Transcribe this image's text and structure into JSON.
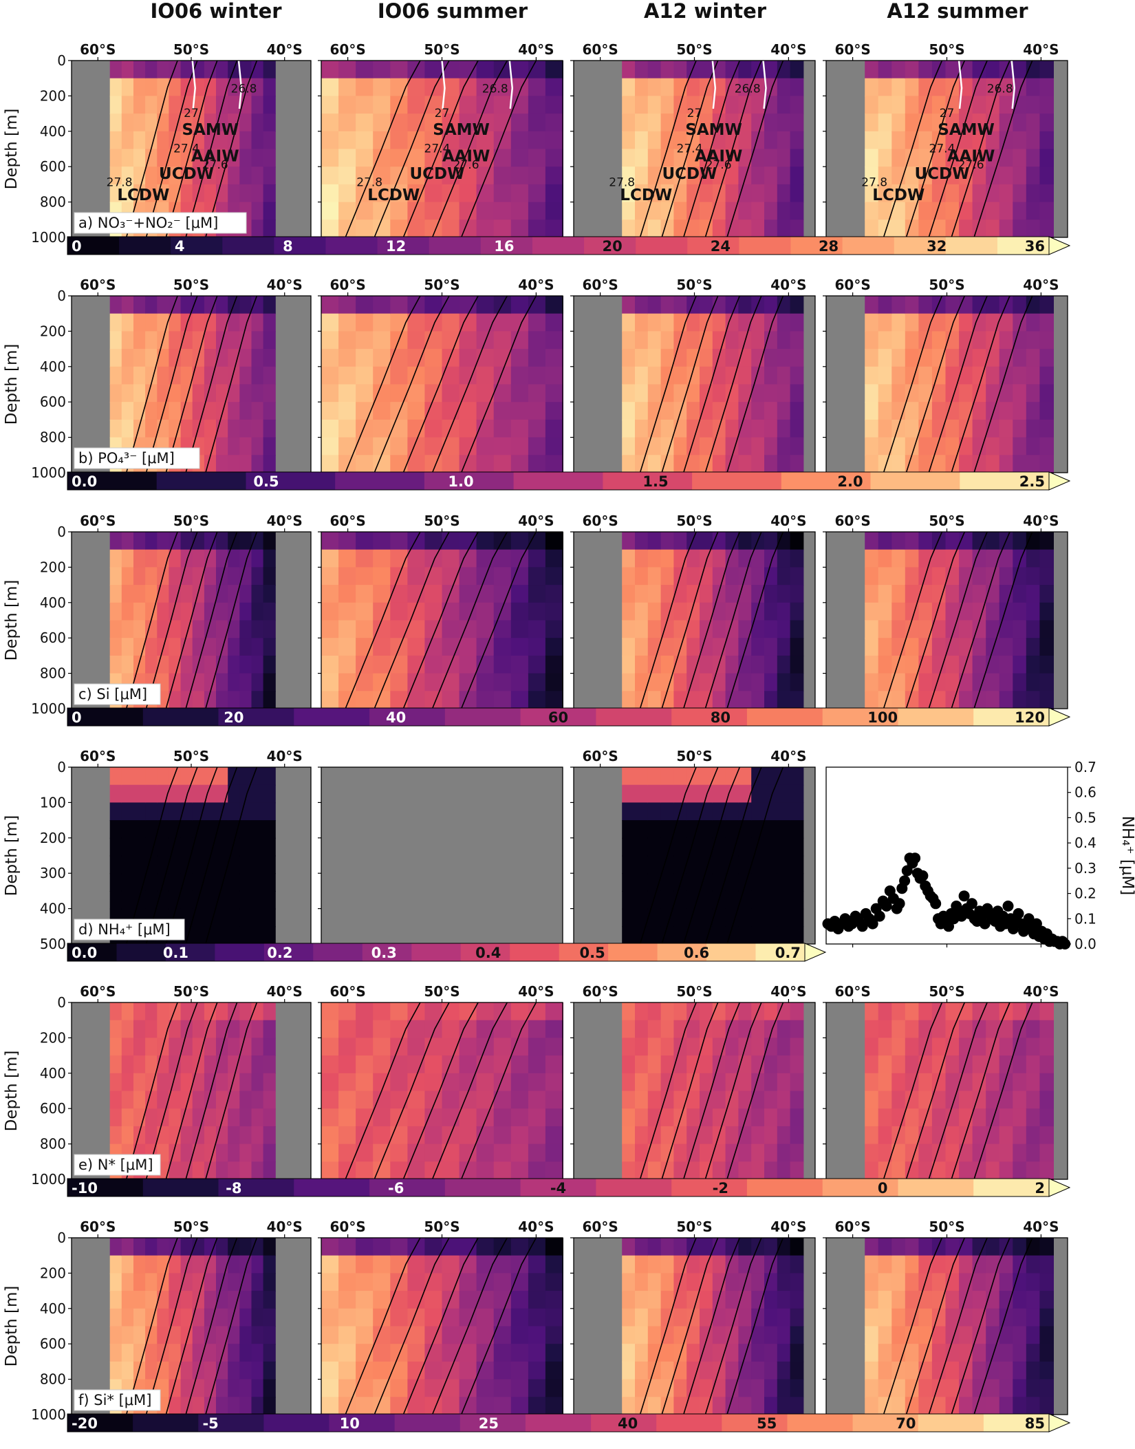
{
  "column_titles": [
    "IO06 winter",
    "IO06 summer",
    "A12 winter",
    "A12 summer"
  ],
  "latitude_ticks": [
    "60°S",
    "50°S",
    "40°S"
  ],
  "depth_label": "Depth [m]",
  "colors": {
    "land": "#808080",
    "contour": "#000000",
    "front": "#ffffff",
    "colormap": "magma"
  },
  "panels": [
    {
      "label": "a) NO₃⁻+NO₂⁻ [μM]",
      "ylim": [
        1000,
        0
      ],
      "yticks": [
        "0",
        "200",
        "400",
        "600",
        "800",
        "1000"
      ],
      "colorbar_ticks": [
        "0",
        "4",
        "8",
        "12",
        "16",
        "20",
        "24",
        "28",
        "32",
        "36"
      ],
      "colorbar_range": [
        0,
        38
      ]
    },
    {
      "label": "b) PO₄³⁻  [μM]",
      "ylim": [
        1000,
        0
      ],
      "yticks": [
        "0",
        "200",
        "400",
        "600",
        "800",
        "1000"
      ],
      "colorbar_ticks": [
        "0.0",
        "0.5",
        "1.0",
        "1.5",
        "2.0",
        "2.5"
      ],
      "colorbar_range": [
        0,
        2.5
      ]
    },
    {
      "label": "c) Si [μM]",
      "ylim": [
        1000,
        0
      ],
      "yticks": [
        "0",
        "200",
        "400",
        "600",
        "800",
        "1000"
      ],
      "colorbar_ticks": [
        "0",
        "20",
        "40",
        "60",
        "80",
        "100",
        "120"
      ],
      "colorbar_range": [
        0,
        120
      ]
    },
    {
      "label": "d) NH₄⁺ [μM]",
      "ylim": [
        500,
        0
      ],
      "yticks": [
        "0",
        "100",
        "200",
        "300",
        "400",
        "500"
      ],
      "colorbar_ticks": [
        "0.0",
        "0.1",
        "0.2",
        "0.3",
        "0.4",
        "0.5",
        "0.6",
        "0.7"
      ],
      "colorbar_range": [
        0,
        0.7
      ]
    },
    {
      "label": "e) N* [μM]",
      "ylim": [
        1000,
        0
      ],
      "yticks": [
        "0",
        "200",
        "400",
        "600",
        "800",
        "1000"
      ],
      "colorbar_ticks": [
        "-10",
        "-8",
        "-6",
        "-4",
        "-2",
        "0",
        "2"
      ],
      "colorbar_range": [
        -10,
        2
      ]
    },
    {
      "label": "f) Si* [μM]",
      "ylim": [
        1000,
        0
      ],
      "yticks": [
        "0",
        "200",
        "400",
        "600",
        "800",
        "1000"
      ],
      "colorbar_ticks": [
        "-20",
        "-5",
        "10",
        "25",
        "40",
        "55",
        "70",
        "85"
      ],
      "colorbar_range": [
        -20,
        85
      ]
    }
  ],
  "water_mass_labels": [
    {
      "panel": 0,
      "col": 0,
      "labels": [
        "SAMW",
        "AAIW",
        "UCDW",
        "LCDW"
      ]
    },
    {
      "panel": 0,
      "col": 1,
      "labels": [
        "SAMW",
        "AAIW",
        "UCDW",
        "LCDW"
      ]
    },
    {
      "panel": 0,
      "col": 2,
      "labels": [
        "SAMW",
        "AAIW",
        "UCDW",
        "LCDW"
      ]
    },
    {
      "panel": 0,
      "col": 3,
      "labels": [
        "SAMW",
        "AAIW",
        "UCDW",
        "LCDW"
      ]
    }
  ],
  "isopycnal_labels": [
    {
      "col": 0,
      "labels": [
        "26.8",
        "27",
        "27.4",
        "27.6",
        "27.8"
      ]
    },
    {
      "col": 1,
      "labels": [
        "26.8",
        "27",
        "27.4",
        "27.6",
        "27.8"
      ]
    },
    {
      "col": 2,
      "labels": [
        "26.8",
        "27",
        "27.4",
        "27.6",
        "27.8"
      ]
    },
    {
      "col": 3,
      "labels": [
        "26.8",
        "27",
        "27.4",
        "27.6",
        "27.8"
      ]
    }
  ],
  "chart_data": {
    "type": "scatter",
    "xlabel": "",
    "ylabel": "NH₄⁺ [μM]",
    "ylim": [
      0.0,
      0.7
    ],
    "yticks": [
      "0.0",
      "0.1",
      "0.2",
      "0.3",
      "0.4",
      "0.5",
      "0.6",
      "0.7"
    ],
    "xlim": [
      -64,
      -36
    ],
    "x": [
      -63.8,
      -63.4,
      -63.0,
      -62.6,
      -62.2,
      -61.8,
      -61.4,
      -61.0,
      -60.6,
      -60.2,
      -59.8,
      -59.4,
      -59.0,
      -58.6,
      -58.2,
      -57.8,
      -57.4,
      -57.0,
      -56.6,
      -56.2,
      -55.8,
      -55.5,
      -55.2,
      -54.9,
      -54.6,
      -54.3,
      -54.0,
      -53.7,
      -53.4,
      -53.1,
      -52.8,
      -52.5,
      -52.2,
      -51.9,
      -51.6,
      -51.3,
      -51.0,
      -50.7,
      -50.4,
      -50.1,
      -49.8,
      -49.5,
      -49.2,
      -48.9,
      -48.6,
      -48.3,
      -48.0,
      -47.7,
      -47.4,
      -47.1,
      -46.8,
      -46.5,
      -46.2,
      -45.9,
      -45.6,
      -45.3,
      -45.0,
      -44.7,
      -44.4,
      -44.1,
      -43.8,
      -43.5,
      -43.2,
      -42.9,
      -42.6,
      -42.3,
      -42.0,
      -41.7,
      -41.4,
      -41.1,
      -40.8,
      -40.5,
      -40.2,
      -39.9,
      -39.6,
      -39.3,
      -39.0,
      -38.7,
      -38.4,
      -38.1,
      -37.8,
      -37.5,
      -37.2,
      -36.9,
      -36.6,
      -36.3
    ],
    "values": [
      0.08,
      0.07,
      0.09,
      0.06,
      0.08,
      0.1,
      0.07,
      0.08,
      0.11,
      0.09,
      0.07,
      0.12,
      0.1,
      0.08,
      0.14,
      0.11,
      0.17,
      0.15,
      0.21,
      0.18,
      0.14,
      0.16,
      0.22,
      0.25,
      0.29,
      0.34,
      0.32,
      0.34,
      0.28,
      0.26,
      0.27,
      0.23,
      0.21,
      0.19,
      0.18,
      0.16,
      0.1,
      0.08,
      0.11,
      0.09,
      0.07,
      0.12,
      0.1,
      0.15,
      0.13,
      0.11,
      0.19,
      0.14,
      0.12,
      0.16,
      0.1,
      0.09,
      0.13,
      0.11,
      0.08,
      0.14,
      0.12,
      0.1,
      0.09,
      0.13,
      0.07,
      0.11,
      0.08,
      0.15,
      0.1,
      0.06,
      0.09,
      0.12,
      0.08,
      0.05,
      0.07,
      0.1,
      0.06,
      0.04,
      0.08,
      0.03,
      0.05,
      0.02,
      0.04,
      0.01,
      0.02,
      0.01,
      0.01,
      0.0,
      0.01,
      0.0
    ]
  }
}
